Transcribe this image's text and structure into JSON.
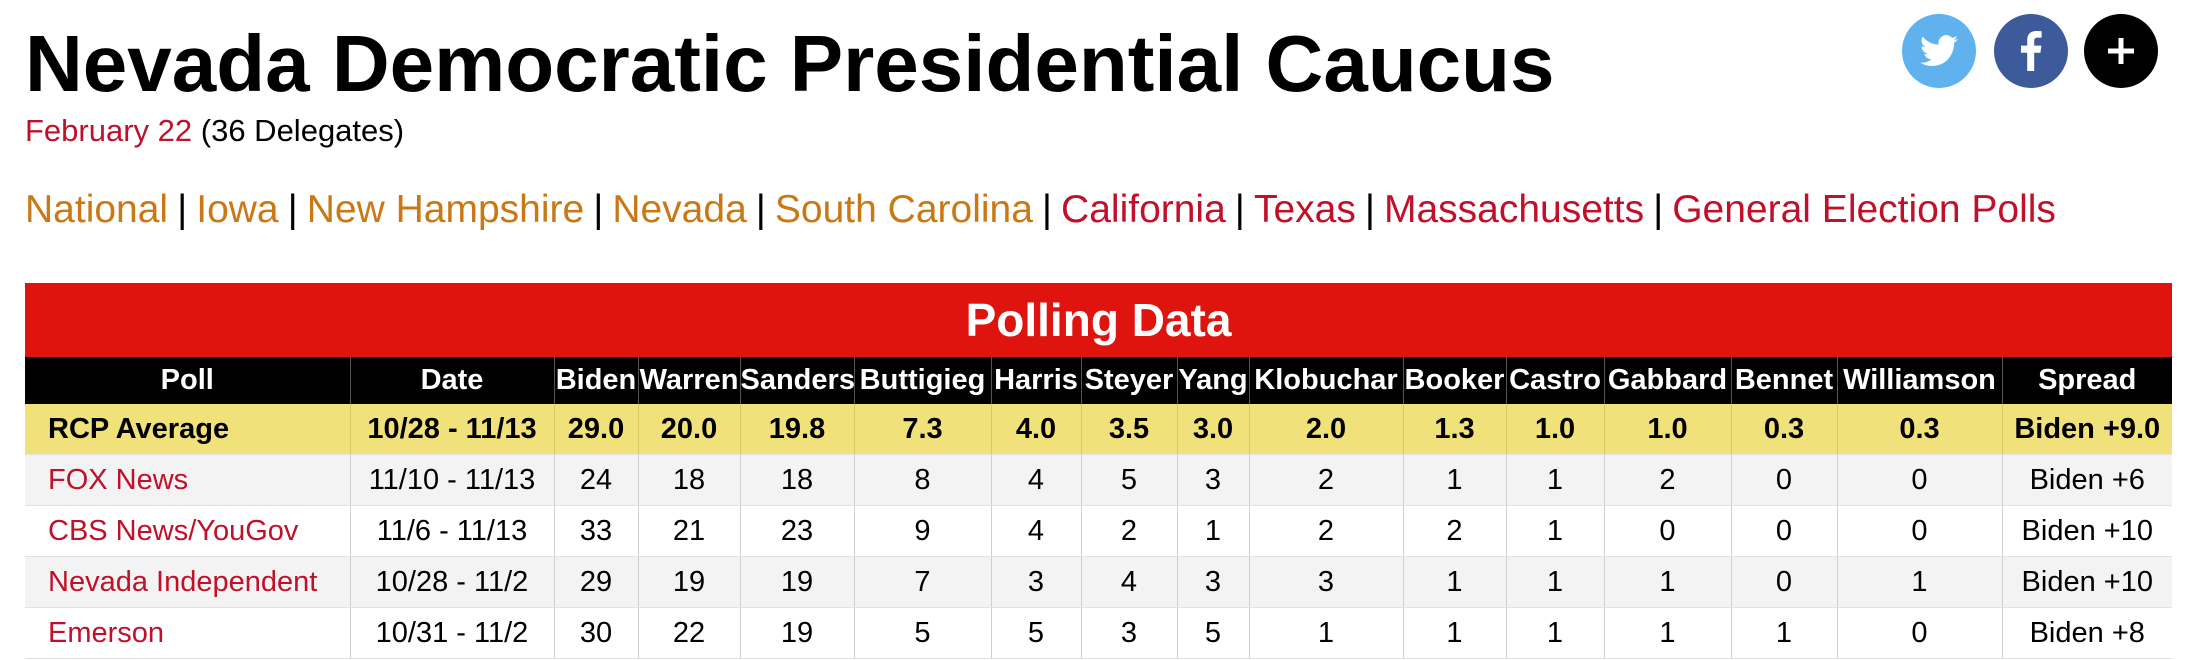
{
  "page": {
    "title": "Nevada Democratic Presidential Caucus",
    "date": "February 22",
    "delegates": "(36 Delegates)"
  },
  "social": [
    {
      "name": "twitter",
      "icon": "twitter-bird-icon",
      "color": "#5fb2ed"
    },
    {
      "name": "facebook",
      "icon": "facebook-f-icon",
      "color": "#3d5a9a"
    },
    {
      "name": "more",
      "icon": "plus-icon",
      "color": "#000000"
    }
  ],
  "nav": {
    "separator": "|",
    "links": [
      {
        "label": "National",
        "color": "#c97814"
      },
      {
        "label": "Iowa",
        "color": "#c97814"
      },
      {
        "label": "New Hampshire",
        "color": "#c97814"
      },
      {
        "label": "Nevada",
        "color": "#c97814"
      },
      {
        "label": "South Carolina",
        "color": "#c97814"
      },
      {
        "label": "California",
        "color": "#c0102a"
      },
      {
        "label": "Texas",
        "color": "#c0102a"
      },
      {
        "label": "Massachusetts",
        "color": "#c0102a"
      },
      {
        "label": "General Election Polls",
        "color": "#c0102a"
      }
    ]
  },
  "polling": {
    "header": "Polling Data",
    "header_color": "#e0140f",
    "columns": [
      "Poll",
      "Date",
      "Biden",
      "Warren",
      "Sanders",
      "Buttigieg",
      "Harris",
      "Steyer",
      "Yang",
      "Klobuchar",
      "Booker",
      "Castro",
      "Gabbard",
      "Bennet",
      "Williamson",
      "Spread"
    ],
    "average": {
      "cells": [
        "RCP Average",
        "10/28 - 11/13",
        "29.0",
        "20.0",
        "19.8",
        "7.3",
        "4.0",
        "3.5",
        "3.0",
        "2.0",
        "1.3",
        "1.0",
        "1.0",
        "0.3",
        "0.3",
        "Biden +9.0"
      ]
    },
    "rows": [
      {
        "cells": [
          "FOX News",
          "11/10 - 11/13",
          "24",
          "18",
          "18",
          "8",
          "4",
          "5",
          "3",
          "2",
          "1",
          "1",
          "2",
          "0",
          "0",
          "Biden +6"
        ]
      },
      {
        "cells": [
          "CBS News/YouGov",
          "11/6 - 11/13",
          "33",
          "21",
          "23",
          "9",
          "4",
          "2",
          "1",
          "2",
          "2",
          "1",
          "0",
          "0",
          "0",
          "Biden +10"
        ]
      },
      {
        "cells": [
          "Nevada Independent",
          "10/28 - 11/2",
          "29",
          "19",
          "19",
          "7",
          "3",
          "4",
          "3",
          "3",
          "1",
          "1",
          "1",
          "0",
          "1",
          "Biden +10"
        ]
      },
      {
        "cells": [
          "Emerson",
          "10/31 - 11/2",
          "30",
          "22",
          "19",
          "5",
          "5",
          "3",
          "5",
          "1",
          "1",
          "1",
          "1",
          "1",
          "0",
          "Biden +8"
        ]
      }
    ]
  }
}
